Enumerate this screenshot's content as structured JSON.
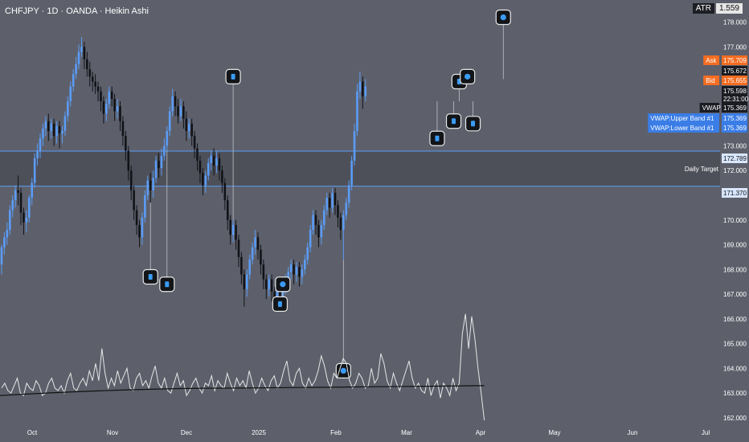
{
  "header": {
    "title": "CHFJPY · 1D · OANDA · Heikin Ashi"
  },
  "atr": {
    "label": "ATR",
    "value": "1.559"
  },
  "colors": {
    "background": "#5d606b",
    "bull": "#5b9cf6",
    "bear": "#111318",
    "wick": "#c8cad0",
    "hline": "#5b9cf6",
    "zone": "#4e5059",
    "ask": "#f46d22",
    "vwap_band": "#3a7de6",
    "indicator": "#e6e6e6",
    "ma": "#111111"
  },
  "chart_data": {
    "type": "candlestick",
    "ylim": [
      161.8,
      178.9
    ],
    "y_ticks": [
      "162.000",
      "163.000",
      "164.000",
      "165.000",
      "166.000",
      "167.000",
      "168.000",
      "169.000",
      "170.000",
      "171.000",
      "172.000",
      "173.000",
      "174.000",
      "175.000",
      "176.000",
      "177.000",
      "178.000"
    ],
    "x_ticks": [
      "Oct",
      "Nov",
      "Dec",
      "2025",
      "Feb",
      "Mar",
      "Apr",
      "May",
      "Jun",
      "Jul"
    ],
    "horizontal_lines": [
      172.789,
      171.37
    ],
    "zone_label": "Daily Target",
    "price_labels": [
      {
        "name": "Ask",
        "value": "175.709",
        "y": 175.709
      },
      {
        "name": "",
        "value": "175.672",
        "y": 175.672
      },
      {
        "name": "Bid",
        "value": "175.655",
        "y": 175.655
      },
      {
        "name": "",
        "value": "175.598",
        "y": 175.598
      },
      {
        "name": "",
        "value": "22:31:00",
        "y": 175.598
      },
      {
        "name": "VWAP",
        "value": "175.369",
        "y": 175.369
      },
      {
        "name": "VWAP:Upper Band #1",
        "value": "175.369",
        "y": 175.369
      },
      {
        "name": "VWAP:Lower Band #1",
        "value": "175.369",
        "y": 175.369
      },
      {
        "name": "",
        "value": "172.789",
        "y": 172.789
      },
      {
        "name": "",
        "value": "171.370",
        "y": 171.37
      }
    ],
    "candles": [
      {
        "o": 168.2,
        "c": 168.9,
        "h": 169.0,
        "l": 167.8
      },
      {
        "o": 168.9,
        "c": 169.3,
        "h": 169.5,
        "l": 168.6
      },
      {
        "o": 169.3,
        "c": 169.6,
        "h": 169.9,
        "l": 169.0
      },
      {
        "o": 169.6,
        "c": 170.4,
        "h": 170.6,
        "l": 169.4
      },
      {
        "o": 170.4,
        "c": 170.8,
        "h": 171.0,
        "l": 170.1
      },
      {
        "o": 170.8,
        "c": 171.2,
        "h": 171.4,
        "l": 170.5
      },
      {
        "o": 171.2,
        "c": 171.1,
        "h": 171.8,
        "l": 170.6
      },
      {
        "o": 171.1,
        "c": 170.3,
        "h": 171.3,
        "l": 169.8
      },
      {
        "o": 170.3,
        "c": 169.9,
        "h": 170.5,
        "l": 169.4
      },
      {
        "o": 169.9,
        "c": 170.1,
        "h": 170.4,
        "l": 169.5
      },
      {
        "o": 170.1,
        "c": 170.9,
        "h": 171.0,
        "l": 169.9
      },
      {
        "o": 170.9,
        "c": 171.5,
        "h": 171.7,
        "l": 170.6
      },
      {
        "o": 171.5,
        "c": 172.5,
        "h": 172.7,
        "l": 171.3
      },
      {
        "o": 172.5,
        "c": 172.8,
        "h": 173.1,
        "l": 172.2
      },
      {
        "o": 172.8,
        "c": 173.3,
        "h": 173.5,
        "l": 172.5
      },
      {
        "o": 173.3,
        "c": 173.7,
        "h": 173.9,
        "l": 173.0
      },
      {
        "o": 173.7,
        "c": 174.0,
        "h": 174.2,
        "l": 173.4
      },
      {
        "o": 174.0,
        "c": 173.6,
        "h": 174.3,
        "l": 173.2
      },
      {
        "o": 173.6,
        "c": 173.9,
        "h": 174.1,
        "l": 173.3
      },
      {
        "o": 173.9,
        "c": 173.4,
        "h": 174.1,
        "l": 173.0
      },
      {
        "o": 173.4,
        "c": 173.8,
        "h": 174.0,
        "l": 173.1
      },
      {
        "o": 173.8,
        "c": 173.5,
        "h": 174.0,
        "l": 172.9
      },
      {
        "o": 173.5,
        "c": 173.6,
        "h": 173.8,
        "l": 173.1
      },
      {
        "o": 173.6,
        "c": 174.2,
        "h": 174.4,
        "l": 173.4
      },
      {
        "o": 174.2,
        "c": 174.8,
        "h": 175.0,
        "l": 174.0
      },
      {
        "o": 174.8,
        "c": 175.4,
        "h": 175.6,
        "l": 174.6
      },
      {
        "o": 175.4,
        "c": 175.9,
        "h": 176.1,
        "l": 175.2
      },
      {
        "o": 175.9,
        "c": 176.3,
        "h": 176.6,
        "l": 175.7
      },
      {
        "o": 176.3,
        "c": 176.8,
        "h": 177.1,
        "l": 176.1
      },
      {
        "o": 176.8,
        "c": 177.0,
        "h": 177.4,
        "l": 176.6
      },
      {
        "o": 177.0,
        "c": 176.5,
        "h": 177.2,
        "l": 176.1
      },
      {
        "o": 176.5,
        "c": 176.1,
        "h": 176.8,
        "l": 175.8
      },
      {
        "o": 176.1,
        "c": 175.8,
        "h": 176.4,
        "l": 175.4
      },
      {
        "o": 175.8,
        "c": 175.6,
        "h": 176.0,
        "l": 175.2
      },
      {
        "o": 175.6,
        "c": 175.4,
        "h": 175.9,
        "l": 175.1
      },
      {
        "o": 175.4,
        "c": 175.2,
        "h": 175.6,
        "l": 174.8
      },
      {
        "o": 175.2,
        "c": 174.8,
        "h": 175.4,
        "l": 174.4
      },
      {
        "o": 174.8,
        "c": 174.3,
        "h": 175.0,
        "l": 173.9
      },
      {
        "o": 174.3,
        "c": 174.7,
        "h": 174.9,
        "l": 174.0
      },
      {
        "o": 174.7,
        "c": 175.2,
        "h": 175.4,
        "l": 174.5
      },
      {
        "o": 175.2,
        "c": 174.9,
        "h": 175.4,
        "l": 174.6
      },
      {
        "o": 174.9,
        "c": 174.4,
        "h": 175.1,
        "l": 174.0
      },
      {
        "o": 174.4,
        "c": 174.6,
        "h": 174.9,
        "l": 174.1
      },
      {
        "o": 174.6,
        "c": 174.0,
        "h": 174.8,
        "l": 173.6
      },
      {
        "o": 174.0,
        "c": 173.4,
        "h": 174.2,
        "l": 173.0
      },
      {
        "o": 173.4,
        "c": 172.8,
        "h": 173.6,
        "l": 172.4
      },
      {
        "o": 172.8,
        "c": 172.0,
        "h": 173.0,
        "l": 171.6
      },
      {
        "o": 172.0,
        "c": 171.2,
        "h": 172.2,
        "l": 170.8
      },
      {
        "o": 171.2,
        "c": 170.4,
        "h": 171.4,
        "l": 170.0
      },
      {
        "o": 170.4,
        "c": 169.8,
        "h": 170.6,
        "l": 169.4
      },
      {
        "o": 169.8,
        "c": 169.3,
        "h": 170.0,
        "l": 168.9
      },
      {
        "o": 169.3,
        "c": 170.1,
        "h": 170.3,
        "l": 169.0
      },
      {
        "o": 170.1,
        "c": 171.0,
        "h": 171.2,
        "l": 169.9
      },
      {
        "o": 171.0,
        "c": 171.6,
        "h": 171.8,
        "l": 170.8
      },
      {
        "o": 171.6,
        "c": 171.2,
        "h": 171.9,
        "l": 170.7
      },
      {
        "o": 171.2,
        "c": 171.7,
        "h": 172.0,
        "l": 170.9
      },
      {
        "o": 171.7,
        "c": 172.4,
        "h": 172.6,
        "l": 171.5
      },
      {
        "o": 172.4,
        "c": 172.1,
        "h": 172.7,
        "l": 171.7
      },
      {
        "o": 172.1,
        "c": 172.6,
        "h": 172.9,
        "l": 171.8
      },
      {
        "o": 172.6,
        "c": 173.0,
        "h": 173.3,
        "l": 172.4
      },
      {
        "o": 173.0,
        "c": 173.6,
        "h": 173.8,
        "l": 172.8
      },
      {
        "o": 173.6,
        "c": 174.4,
        "h": 174.6,
        "l": 173.4
      },
      {
        "o": 174.4,
        "c": 175.0,
        "h": 175.3,
        "l": 174.2
      },
      {
        "o": 175.0,
        "c": 174.6,
        "h": 175.2,
        "l": 174.2
      },
      {
        "o": 174.6,
        "c": 174.2,
        "h": 174.9,
        "l": 173.9
      },
      {
        "o": 174.2,
        "c": 174.6,
        "h": 174.9,
        "l": 174.0
      },
      {
        "o": 174.6,
        "c": 174.1,
        "h": 174.8,
        "l": 173.7
      },
      {
        "o": 174.1,
        "c": 173.6,
        "h": 174.4,
        "l": 173.2
      },
      {
        "o": 173.6,
        "c": 173.9,
        "h": 174.1,
        "l": 173.3
      },
      {
        "o": 173.9,
        "c": 173.4,
        "h": 174.1,
        "l": 173.0
      },
      {
        "o": 173.4,
        "c": 172.9,
        "h": 173.6,
        "l": 172.5
      },
      {
        "o": 172.9,
        "c": 172.4,
        "h": 173.1,
        "l": 172.0
      },
      {
        "o": 172.4,
        "c": 171.9,
        "h": 172.6,
        "l": 171.5
      },
      {
        "o": 171.9,
        "c": 171.4,
        "h": 172.1,
        "l": 171.0
      },
      {
        "o": 171.4,
        "c": 171.8,
        "h": 172.0,
        "l": 171.1
      },
      {
        "o": 171.8,
        "c": 172.3,
        "h": 172.5,
        "l": 171.6
      },
      {
        "o": 172.3,
        "c": 172.6,
        "h": 172.8,
        "l": 172.0
      },
      {
        "o": 172.6,
        "c": 172.2,
        "h": 172.9,
        "l": 171.8
      },
      {
        "o": 172.2,
        "c": 172.5,
        "h": 172.8,
        "l": 171.9
      },
      {
        "o": 172.5,
        "c": 172.0,
        "h": 172.7,
        "l": 171.6
      },
      {
        "o": 172.0,
        "c": 171.5,
        "h": 172.2,
        "l": 171.1
      },
      {
        "o": 171.5,
        "c": 170.8,
        "h": 171.7,
        "l": 170.4
      },
      {
        "o": 170.8,
        "c": 170.0,
        "h": 171.0,
        "l": 169.6
      },
      {
        "o": 170.0,
        "c": 169.4,
        "h": 170.2,
        "l": 169.0
      },
      {
        "o": 169.4,
        "c": 169.8,
        "h": 170.0,
        "l": 169.1
      },
      {
        "o": 169.8,
        "c": 169.2,
        "h": 170.0,
        "l": 168.8
      },
      {
        "o": 169.2,
        "c": 168.5,
        "h": 169.4,
        "l": 168.1
      },
      {
        "o": 168.5,
        "c": 167.8,
        "h": 168.7,
        "l": 167.4
      },
      {
        "o": 167.8,
        "c": 167.2,
        "h": 168.0,
        "l": 166.5
      },
      {
        "o": 167.2,
        "c": 167.8,
        "h": 168.0,
        "l": 166.9
      },
      {
        "o": 167.8,
        "c": 168.4,
        "h": 168.6,
        "l": 167.6
      },
      {
        "o": 168.4,
        "c": 168.9,
        "h": 169.1,
        "l": 168.2
      },
      {
        "o": 168.9,
        "c": 169.3,
        "h": 169.6,
        "l": 168.6
      },
      {
        "o": 169.3,
        "c": 168.8,
        "h": 169.5,
        "l": 168.4
      },
      {
        "o": 168.8,
        "c": 168.2,
        "h": 169.0,
        "l": 167.8
      },
      {
        "o": 168.2,
        "c": 167.6,
        "h": 168.4,
        "l": 167.2
      },
      {
        "o": 167.6,
        "c": 167.2,
        "h": 167.8,
        "l": 166.8
      },
      {
        "o": 167.2,
        "c": 167.6,
        "h": 167.8,
        "l": 166.9
      },
      {
        "o": 167.6,
        "c": 167.1,
        "h": 167.8,
        "l": 166.7
      },
      {
        "o": 167.1,
        "c": 166.8,
        "h": 167.3,
        "l": 166.4
      },
      {
        "o": 166.8,
        "c": 167.2,
        "h": 167.4,
        "l": 166.5
      },
      {
        "o": 167.2,
        "c": 166.9,
        "h": 167.4,
        "l": 166.5
      },
      {
        "o": 166.9,
        "c": 167.3,
        "h": 167.5,
        "l": 166.6
      },
      {
        "o": 167.3,
        "c": 167.6,
        "h": 167.8,
        "l": 167.0
      },
      {
        "o": 167.6,
        "c": 167.9,
        "h": 168.1,
        "l": 167.3
      },
      {
        "o": 167.9,
        "c": 168.2,
        "h": 168.4,
        "l": 167.6
      },
      {
        "o": 168.2,
        "c": 167.8,
        "h": 168.4,
        "l": 167.4
      },
      {
        "o": 167.8,
        "c": 168.1,
        "h": 168.3,
        "l": 167.5
      },
      {
        "o": 168.1,
        "c": 167.7,
        "h": 168.3,
        "l": 167.3
      },
      {
        "o": 167.7,
        "c": 168.0,
        "h": 168.2,
        "l": 167.4
      },
      {
        "o": 168.0,
        "c": 168.4,
        "h": 168.6,
        "l": 167.8
      },
      {
        "o": 168.4,
        "c": 168.9,
        "h": 169.1,
        "l": 168.2
      },
      {
        "o": 168.9,
        "c": 169.6,
        "h": 169.8,
        "l": 168.7
      },
      {
        "o": 169.6,
        "c": 170.2,
        "h": 170.4,
        "l": 169.4
      },
      {
        "o": 170.2,
        "c": 169.8,
        "h": 170.4,
        "l": 169.4
      },
      {
        "o": 169.8,
        "c": 169.3,
        "h": 170.0,
        "l": 168.9
      },
      {
        "o": 169.3,
        "c": 169.8,
        "h": 170.0,
        "l": 169.0
      },
      {
        "o": 169.8,
        "c": 170.4,
        "h": 170.6,
        "l": 169.6
      },
      {
        "o": 170.4,
        "c": 170.9,
        "h": 171.1,
        "l": 170.2
      },
      {
        "o": 170.9,
        "c": 170.5,
        "h": 171.1,
        "l": 170.1
      },
      {
        "o": 170.5,
        "c": 171.1,
        "h": 171.3,
        "l": 170.3
      },
      {
        "o": 171.1,
        "c": 170.6,
        "h": 171.3,
        "l": 170.2
      },
      {
        "o": 170.6,
        "c": 170.1,
        "h": 170.8,
        "l": 169.7
      },
      {
        "o": 170.1,
        "c": 169.6,
        "h": 170.3,
        "l": 169.2
      },
      {
        "o": 169.6,
        "c": 170.2,
        "h": 170.4,
        "l": 168.4
      },
      {
        "o": 170.2,
        "c": 170.7,
        "h": 170.9,
        "l": 170.0
      },
      {
        "o": 170.7,
        "c": 171.4,
        "h": 171.6,
        "l": 170.5
      },
      {
        "o": 171.4,
        "c": 172.4,
        "h": 172.6,
        "l": 171.2
      },
      {
        "o": 172.4,
        "c": 173.6,
        "h": 173.9,
        "l": 172.2
      },
      {
        "o": 173.6,
        "c": 175.2,
        "h": 175.5,
        "l": 173.4
      },
      {
        "o": 175.2,
        "c": 175.6,
        "h": 176.0,
        "l": 174.9
      },
      {
        "o": 175.6,
        "c": 175.0,
        "h": 175.8,
        "l": 174.5
      },
      {
        "o": 175.0,
        "c": 175.4,
        "h": 175.7,
        "l": 174.8
      }
    ],
    "markers": [
      {
        "i": 54,
        "y": 167.7,
        "shape": "square"
      },
      {
        "i": 60,
        "y": 167.4,
        "shape": "square"
      },
      {
        "i": 84,
        "y": 175.8,
        "shape": "square"
      },
      {
        "i": 102,
        "y": 167.4,
        "shape": "circle"
      },
      {
        "i": 101,
        "y": 166.6,
        "shape": "square"
      },
      {
        "i": 124,
        "y": 163.9,
        "shape": "circle"
      },
      {
        "i": 158,
        "y": 173.3,
        "shape": "square"
      },
      {
        "i": 164,
        "y": 174.0,
        "shape": "square"
      },
      {
        "i": 171,
        "y": 173.9,
        "shape": "square"
      },
      {
        "i": 166,
        "y": 175.6,
        "shape": "square"
      },
      {
        "i": 169,
        "y": 175.8,
        "shape": "circle"
      },
      {
        "i": 182,
        "y": 178.2,
        "shape": "circle"
      }
    ],
    "indicator": {
      "baseline": 163.2,
      "values": [
        163.2,
        163.4,
        163.1,
        163.0,
        163.3,
        163.6,
        163.0,
        162.9,
        163.4,
        163.2,
        163.1,
        163.5,
        163.3,
        162.9,
        163.0,
        163.4,
        163.6,
        163.2,
        163.1,
        163.3,
        163.0,
        163.5,
        163.8,
        163.2,
        163.1,
        163.4,
        163.6,
        163.3,
        163.9,
        163.5,
        164.2,
        163.5,
        164.8,
        163.8,
        163.2,
        163.6,
        163.3,
        163.9,
        163.4,
        163.7,
        164.0,
        163.2,
        163.1,
        163.6,
        163.8,
        163.3,
        163.5,
        163.2,
        163.7,
        164.1,
        163.4,
        163.2,
        163.6,
        163.1,
        163.0,
        163.4,
        163.8,
        163.3,
        163.5,
        162.9,
        163.1,
        163.4,
        163.6,
        163.2,
        163.0,
        163.4,
        163.3,
        163.7,
        163.1,
        163.5,
        163.3,
        163.2,
        163.8,
        163.4,
        163.1,
        163.6,
        163.3,
        163.5,
        163.2,
        163.9,
        163.4,
        163.0,
        163.2,
        163.6,
        163.3,
        163.1,
        163.5,
        163.7,
        163.2,
        163.4,
        163.9,
        164.3,
        163.5,
        163.3,
        163.8,
        164.0,
        163.4,
        163.2,
        163.6,
        163.3,
        163.5,
        163.9,
        164.5,
        164.1,
        163.5,
        163.2,
        163.8,
        163.6,
        164.0,
        164.4,
        164.2,
        163.5,
        163.2,
        163.4,
        163.8,
        163.6,
        163.2,
        163.3,
        164.0,
        163.4,
        163.6,
        164.6,
        164.2,
        163.5,
        163.2,
        163.8,
        163.4,
        163.1,
        163.5,
        163.9,
        164.3,
        163.6,
        163.2,
        163.4,
        163.1,
        163.0,
        163.6,
        162.9,
        163.3,
        163.5,
        162.8,
        163.4,
        163.2,
        162.9,
        163.6,
        163.1,
        163.4,
        165.4,
        166.2,
        164.8,
        166.1,
        165.2,
        164.0,
        163.0,
        161.9
      ]
    }
  }
}
